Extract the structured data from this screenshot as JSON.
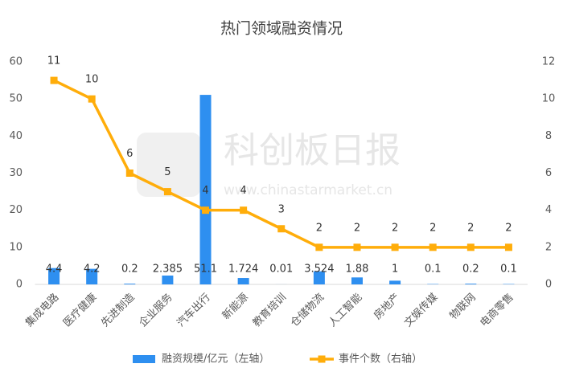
{
  "chart_data": {
    "type": "combo",
    "title": "热门领域融资情况",
    "watermark": [
      "科创板日报",
      "www.chinastarmarket.cn"
    ],
    "categories": [
      "集成电路",
      "医疗健康",
      "先进制造",
      "企业服务",
      "汽车出行",
      "新能源",
      "教育培训",
      "仓储物流",
      "人工智能",
      "房地产",
      "文娱传媒",
      "物联网",
      "电商零售"
    ],
    "series": [
      {
        "name": "融资规模/亿元（左轴）",
        "type": "bar",
        "axis": "y",
        "color": "#2e8ff0",
        "values": [
          4.4,
          4.2,
          0.2,
          2.385,
          51.1,
          1.724,
          0.01,
          3.524,
          1.88,
          1,
          0.1,
          0.2,
          0.1
        ]
      },
      {
        "name": "事件个数（右轴）",
        "type": "line",
        "axis": "y2",
        "color": "#ffad0a",
        "values": [
          11,
          10,
          6,
          5,
          4,
          4,
          3,
          2,
          2,
          2,
          2,
          2,
          2
        ]
      }
    ],
    "ylim": [
      0,
      60
    ],
    "yticks": [
      0,
      10,
      20,
      30,
      40,
      50,
      60
    ],
    "y2lim": [
      0,
      12
    ],
    "y2ticks": [
      0,
      2,
      4,
      6,
      8,
      10,
      12
    ],
    "grid": false,
    "legend": "bottom"
  }
}
